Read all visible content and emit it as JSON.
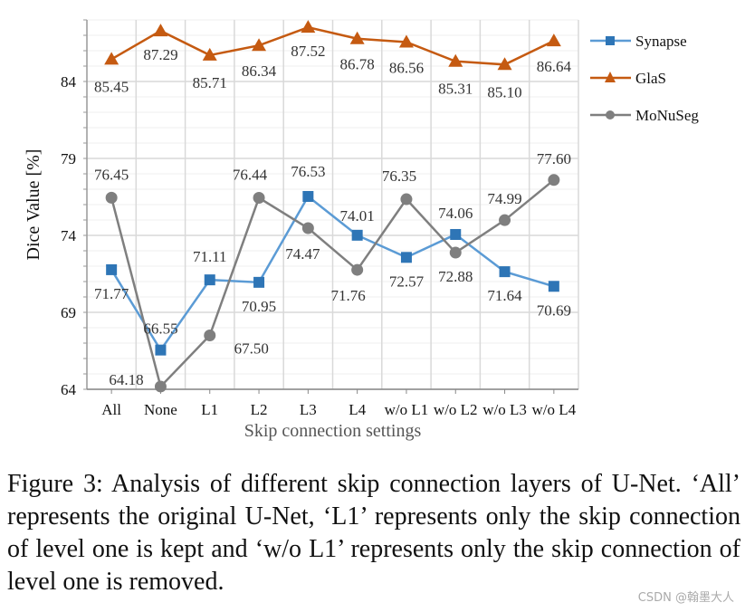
{
  "chart_data": {
    "type": "line",
    "title": "",
    "xlabel": "Skip connection settings",
    "ylabel": "Dice Value [%]",
    "categories": [
      "All",
      "None",
      "L1",
      "L2",
      "L3",
      "L4",
      "w/o L1",
      "w/o L2",
      "w/o L3",
      "w/o L4"
    ],
    "ylim": [
      64,
      88
    ],
    "yticks": [
      64,
      69,
      74,
      79,
      84
    ],
    "grid": true,
    "legend_position": "right",
    "series": [
      {
        "name": "Synapse",
        "marker": "square",
        "color": "#5B9BD5",
        "marker_color": "#2E75B6",
        "values": [
          71.77,
          66.55,
          71.11,
          70.95,
          76.53,
          74.01,
          72.57,
          74.06,
          71.64,
          70.69
        ]
      },
      {
        "name": "GlaS",
        "marker": "triangle",
        "color": "#C55A11",
        "marker_color": "#C55A11",
        "values": [
          85.45,
          87.29,
          85.71,
          86.34,
          87.52,
          86.78,
          86.56,
          85.31,
          85.1,
          86.64
        ]
      },
      {
        "name": "MoNuSeg",
        "marker": "circle",
        "color": "#7F7F7F",
        "marker_color": "#7F7F7F",
        "values": [
          76.45,
          64.18,
          67.5,
          76.44,
          74.47,
          71.76,
          76.35,
          72.88,
          74.99,
          77.6
        ]
      }
    ]
  },
  "caption": "Figure 3: Analysis of different skip connection layers of U-Net. ‘All’ represents the original U-Net, ‘L1’ represents only the skip connection of level one is kept and ‘w/o L1’ represents only the skip connection of level one is removed.",
  "watermark": "CSDN @翰墨大人"
}
